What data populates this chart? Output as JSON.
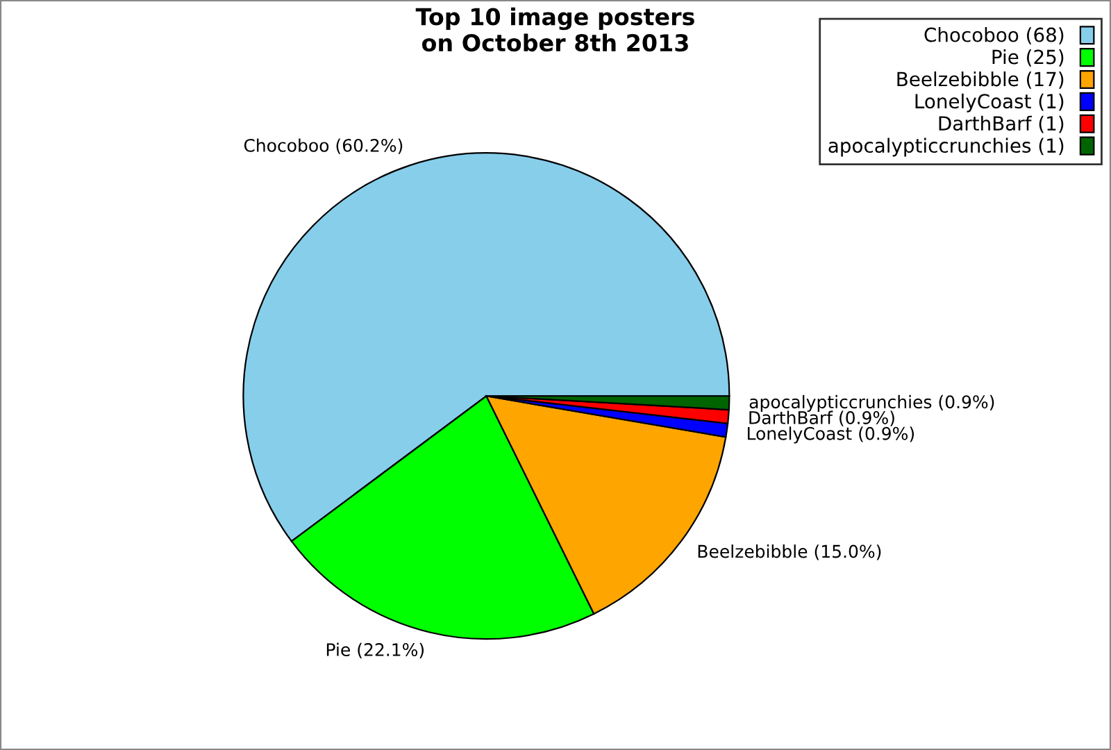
{
  "chart_data": {
    "type": "pie",
    "title": "Top 10 image posters\non October 8th 2013",
    "categories": [
      "Chocoboo (68)",
      "Pie (25)",
      "Beelzebibble (17)",
      "LonelyCoast (1)",
      "DarthBarf (1)",
      "apocalypticcrunchies (1)"
    ],
    "values": [
      60.2,
      22.1,
      15.0,
      0.9,
      0.9,
      0.9
    ],
    "value_labels": [
      "Chocoboo (60.2%)",
      "Pie (22.1%)",
      "Beelzebibble (15.0%)",
      "LonelyCoast (0.9%)",
      "DarthBarf (0.9%)",
      "apocalypticcrunchies (0.9%)"
    ],
    "colors": [
      "#87ceeb",
      "#00ff00",
      "#ffa500",
      "#0000ff",
      "#ff0000",
      "#006400"
    ],
    "legend": "top right"
  }
}
